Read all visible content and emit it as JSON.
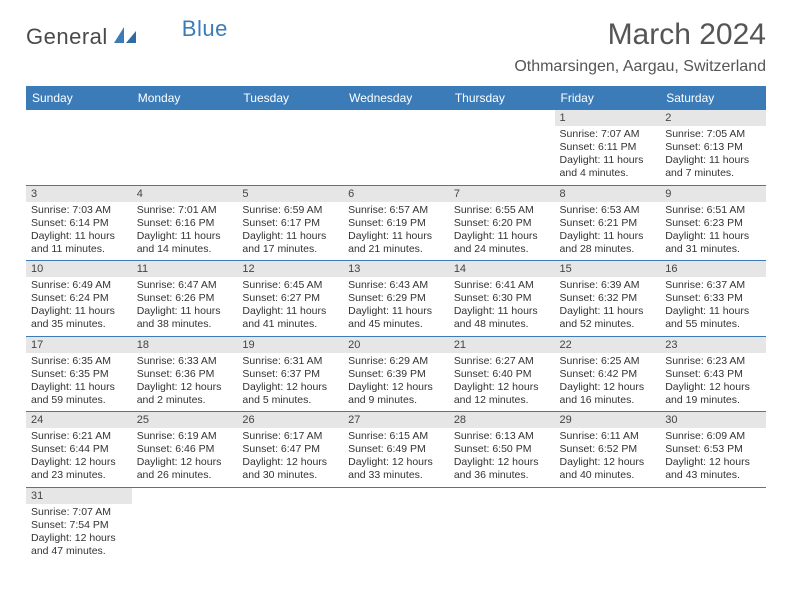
{
  "brand": {
    "name_a": "General",
    "name_b": "Blue"
  },
  "title": "March 2024",
  "location": "Othmarsingen, Aargau, Switzerland",
  "colors": {
    "header_bg": "#3b7cb8",
    "header_text": "#ffffff",
    "daynum_bg": "#e6e6e6",
    "border": "#3b7cb8",
    "text": "#333333",
    "background": "#ffffff"
  },
  "day_headers": [
    "Sunday",
    "Monday",
    "Tuesday",
    "Wednesday",
    "Thursday",
    "Friday",
    "Saturday"
  ],
  "weeks": [
    [
      {
        "n": "",
        "sr": "",
        "ss": "",
        "dl": ""
      },
      {
        "n": "",
        "sr": "",
        "ss": "",
        "dl": ""
      },
      {
        "n": "",
        "sr": "",
        "ss": "",
        "dl": ""
      },
      {
        "n": "",
        "sr": "",
        "ss": "",
        "dl": ""
      },
      {
        "n": "",
        "sr": "",
        "ss": "",
        "dl": ""
      },
      {
        "n": "1",
        "sr": "Sunrise: 7:07 AM",
        "ss": "Sunset: 6:11 PM",
        "dl": "Daylight: 11 hours and 4 minutes."
      },
      {
        "n": "2",
        "sr": "Sunrise: 7:05 AM",
        "ss": "Sunset: 6:13 PM",
        "dl": "Daylight: 11 hours and 7 minutes."
      }
    ],
    [
      {
        "n": "3",
        "sr": "Sunrise: 7:03 AM",
        "ss": "Sunset: 6:14 PM",
        "dl": "Daylight: 11 hours and 11 minutes."
      },
      {
        "n": "4",
        "sr": "Sunrise: 7:01 AM",
        "ss": "Sunset: 6:16 PM",
        "dl": "Daylight: 11 hours and 14 minutes."
      },
      {
        "n": "5",
        "sr": "Sunrise: 6:59 AM",
        "ss": "Sunset: 6:17 PM",
        "dl": "Daylight: 11 hours and 17 minutes."
      },
      {
        "n": "6",
        "sr": "Sunrise: 6:57 AM",
        "ss": "Sunset: 6:19 PM",
        "dl": "Daylight: 11 hours and 21 minutes."
      },
      {
        "n": "7",
        "sr": "Sunrise: 6:55 AM",
        "ss": "Sunset: 6:20 PM",
        "dl": "Daylight: 11 hours and 24 minutes."
      },
      {
        "n": "8",
        "sr": "Sunrise: 6:53 AM",
        "ss": "Sunset: 6:21 PM",
        "dl": "Daylight: 11 hours and 28 minutes."
      },
      {
        "n": "9",
        "sr": "Sunrise: 6:51 AM",
        "ss": "Sunset: 6:23 PM",
        "dl": "Daylight: 11 hours and 31 minutes."
      }
    ],
    [
      {
        "n": "10",
        "sr": "Sunrise: 6:49 AM",
        "ss": "Sunset: 6:24 PM",
        "dl": "Daylight: 11 hours and 35 minutes."
      },
      {
        "n": "11",
        "sr": "Sunrise: 6:47 AM",
        "ss": "Sunset: 6:26 PM",
        "dl": "Daylight: 11 hours and 38 minutes."
      },
      {
        "n": "12",
        "sr": "Sunrise: 6:45 AM",
        "ss": "Sunset: 6:27 PM",
        "dl": "Daylight: 11 hours and 41 minutes."
      },
      {
        "n": "13",
        "sr": "Sunrise: 6:43 AM",
        "ss": "Sunset: 6:29 PM",
        "dl": "Daylight: 11 hours and 45 minutes."
      },
      {
        "n": "14",
        "sr": "Sunrise: 6:41 AM",
        "ss": "Sunset: 6:30 PM",
        "dl": "Daylight: 11 hours and 48 minutes."
      },
      {
        "n": "15",
        "sr": "Sunrise: 6:39 AM",
        "ss": "Sunset: 6:32 PM",
        "dl": "Daylight: 11 hours and 52 minutes."
      },
      {
        "n": "16",
        "sr": "Sunrise: 6:37 AM",
        "ss": "Sunset: 6:33 PM",
        "dl": "Daylight: 11 hours and 55 minutes."
      }
    ],
    [
      {
        "n": "17",
        "sr": "Sunrise: 6:35 AM",
        "ss": "Sunset: 6:35 PM",
        "dl": "Daylight: 11 hours and 59 minutes."
      },
      {
        "n": "18",
        "sr": "Sunrise: 6:33 AM",
        "ss": "Sunset: 6:36 PM",
        "dl": "Daylight: 12 hours and 2 minutes."
      },
      {
        "n": "19",
        "sr": "Sunrise: 6:31 AM",
        "ss": "Sunset: 6:37 PM",
        "dl": "Daylight: 12 hours and 5 minutes."
      },
      {
        "n": "20",
        "sr": "Sunrise: 6:29 AM",
        "ss": "Sunset: 6:39 PM",
        "dl": "Daylight: 12 hours and 9 minutes."
      },
      {
        "n": "21",
        "sr": "Sunrise: 6:27 AM",
        "ss": "Sunset: 6:40 PM",
        "dl": "Daylight: 12 hours and 12 minutes."
      },
      {
        "n": "22",
        "sr": "Sunrise: 6:25 AM",
        "ss": "Sunset: 6:42 PM",
        "dl": "Daylight: 12 hours and 16 minutes."
      },
      {
        "n": "23",
        "sr": "Sunrise: 6:23 AM",
        "ss": "Sunset: 6:43 PM",
        "dl": "Daylight: 12 hours and 19 minutes."
      }
    ],
    [
      {
        "n": "24",
        "sr": "Sunrise: 6:21 AM",
        "ss": "Sunset: 6:44 PM",
        "dl": "Daylight: 12 hours and 23 minutes."
      },
      {
        "n": "25",
        "sr": "Sunrise: 6:19 AM",
        "ss": "Sunset: 6:46 PM",
        "dl": "Daylight: 12 hours and 26 minutes."
      },
      {
        "n": "26",
        "sr": "Sunrise: 6:17 AM",
        "ss": "Sunset: 6:47 PM",
        "dl": "Daylight: 12 hours and 30 minutes."
      },
      {
        "n": "27",
        "sr": "Sunrise: 6:15 AM",
        "ss": "Sunset: 6:49 PM",
        "dl": "Daylight: 12 hours and 33 minutes."
      },
      {
        "n": "28",
        "sr": "Sunrise: 6:13 AM",
        "ss": "Sunset: 6:50 PM",
        "dl": "Daylight: 12 hours and 36 minutes."
      },
      {
        "n": "29",
        "sr": "Sunrise: 6:11 AM",
        "ss": "Sunset: 6:52 PM",
        "dl": "Daylight: 12 hours and 40 minutes."
      },
      {
        "n": "30",
        "sr": "Sunrise: 6:09 AM",
        "ss": "Sunset: 6:53 PM",
        "dl": "Daylight: 12 hours and 43 minutes."
      }
    ],
    [
      {
        "n": "31",
        "sr": "Sunrise: 7:07 AM",
        "ss": "Sunset: 7:54 PM",
        "dl": "Daylight: 12 hours and 47 minutes."
      },
      {
        "n": "",
        "sr": "",
        "ss": "",
        "dl": ""
      },
      {
        "n": "",
        "sr": "",
        "ss": "",
        "dl": ""
      },
      {
        "n": "",
        "sr": "",
        "ss": "",
        "dl": ""
      },
      {
        "n": "",
        "sr": "",
        "ss": "",
        "dl": ""
      },
      {
        "n": "",
        "sr": "",
        "ss": "",
        "dl": ""
      },
      {
        "n": "",
        "sr": "",
        "ss": "",
        "dl": ""
      }
    ]
  ]
}
